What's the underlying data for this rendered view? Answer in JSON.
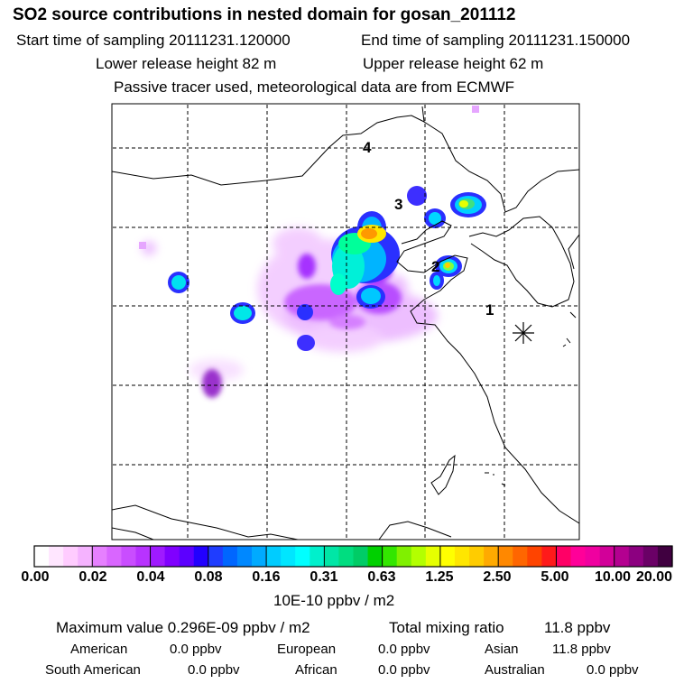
{
  "header": {
    "title": "SO2 source contributions in nested domain for gosan_201112",
    "start_label": "Start time of sampling 20111231.120000",
    "end_label": "End time of sampling 20111231.150000",
    "lower_label": "Lower release height   82 m",
    "upper_label": "Upper release height   62 m",
    "tracer_note": "Passive tracer used, meteorological data are from ECMWF"
  },
  "map": {
    "region_labels": [
      "1",
      "2",
      "3",
      "4"
    ],
    "receptor_symbol": "gosan-receptor-star"
  },
  "colorbar": {
    "ticks": [
      "0.00",
      "0.02",
      "0.04",
      "0.08",
      "0.16",
      "0.31",
      "0.63",
      "1.25",
      "2.50",
      "5.00",
      "10.00",
      "20.00"
    ],
    "unit_label": "10E-10 ppbv / m2",
    "colors": [
      "#ffffff",
      "#ffe6ff",
      "#ffccff",
      "#f5b3ff",
      "#e680ff",
      "#d966ff",
      "#c94dff",
      "#b833ff",
      "#9f1aff",
      "#8000ff",
      "#5c00ff",
      "#2200ff",
      "#1f3dff",
      "#0066ff",
      "#0088ff",
      "#00aaff",
      "#00ccff",
      "#00e6ff",
      "#00ffff",
      "#00f0cc",
      "#00e6a6",
      "#00dd80",
      "#00cc66",
      "#00d000",
      "#33e600",
      "#80f000",
      "#b3ff00",
      "#e6ff00",
      "#ffff00",
      "#ffe600",
      "#ffcc00",
      "#ffaa00",
      "#ff8800",
      "#ff6600",
      "#ff4400",
      "#ff1a1a",
      "#ff0066",
      "#ff0099",
      "#f000a0",
      "#d20099",
      "#b40090",
      "#8c0080",
      "#6a0066",
      "#400040"
    ]
  },
  "stats": {
    "max_label": "Maximum value  0.296E-09 ppbv / m2",
    "total_label": "Total mixing ratio",
    "total_value": "11.8 ppbv"
  },
  "regions": [
    {
      "name": "American",
      "value": "0.0 ppbv"
    },
    {
      "name": "European",
      "value": "0.0 ppbv"
    },
    {
      "name": "Asian",
      "value": "11.8 ppbv"
    },
    {
      "name": "South American",
      "value": "0.0 ppbv"
    },
    {
      "name": "African",
      "value": "0.0 ppbv"
    },
    {
      "name": "Australian",
      "value": "0.0 ppbv"
    }
  ]
}
